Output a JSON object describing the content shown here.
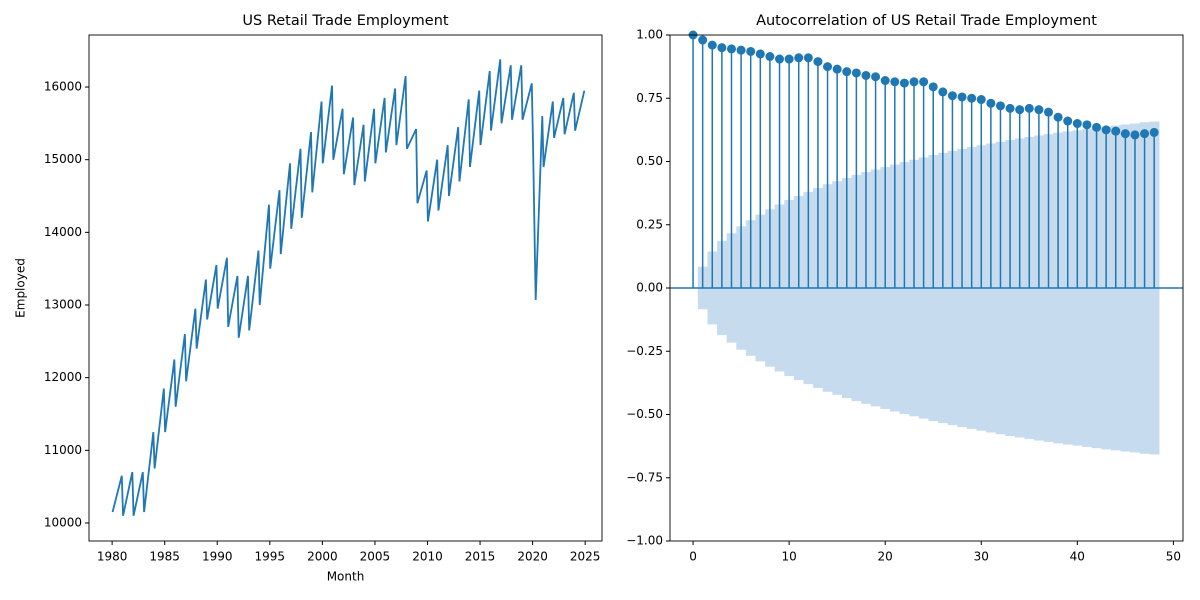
{
  "chart_data": [
    {
      "type": "line",
      "title": "US Retail Trade Employment",
      "x_label": "Month",
      "y_label": "Employed",
      "xlim": [
        1977.8,
        2026.6
      ],
      "ylim": [
        9752,
        16716
      ],
      "xticks": [
        1980,
        1985,
        1990,
        1995,
        2000,
        2005,
        2010,
        2015,
        2020,
        2025
      ],
      "yticks": [
        10000,
        11000,
        12000,
        13000,
        14000,
        15000,
        16000
      ],
      "color": "#1f77b4",
      "x": [
        1980.04,
        1980.92,
        1981.04,
        1981.92,
        1982.04,
        1982.92,
        1983.04,
        1983.92,
        1984.04,
        1984.92,
        1985.04,
        1985.92,
        1986.04,
        1986.92,
        1987.04,
        1987.92,
        1988.04,
        1988.92,
        1989.04,
        1989.92,
        1990.04,
        1990.92,
        1991.04,
        1991.92,
        1992.04,
        1992.92,
        1993.04,
        1993.92,
        1994.04,
        1994.92,
        1995.04,
        1995.92,
        1996.04,
        1996.92,
        1997.04,
        1997.92,
        1998.04,
        1998.92,
        1999.04,
        1999.92,
        2000.04,
        2000.92,
        2001.04,
        2001.92,
        2002.04,
        2002.92,
        2003.04,
        2003.92,
        2004.04,
        2004.92,
        2005.04,
        2005.92,
        2006.04,
        2006.92,
        2007.04,
        2007.92,
        2008.04,
        2008.92,
        2009.04,
        2009.92,
        2010.04,
        2010.92,
        2011.04,
        2011.92,
        2012.04,
        2012.92,
        2013.04,
        2013.92,
        2014.04,
        2014.92,
        2015.04,
        2015.92,
        2016.04,
        2016.92,
        2017.04,
        2017.92,
        2018.04,
        2018.92,
        2019.04,
        2019.92,
        2020.04,
        2020.29,
        2020.92,
        2021.04,
        2021.92,
        2022.04,
        2022.92,
        2023.04,
        2023.92,
        2024.04,
        2024.92
      ],
      "values": [
        10150,
        10650,
        10100,
        10700,
        10100,
        10700,
        10150,
        11250,
        10750,
        11850,
        11250,
        12250,
        11600,
        12600,
        11950,
        12950,
        12400,
        13350,
        12800,
        13550,
        12950,
        13650,
        12700,
        13400,
        12550,
        13400,
        12650,
        13750,
        13000,
        14380,
        13500,
        14580,
        13700,
        14950,
        14050,
        15150,
        14200,
        15380,
        14550,
        15800,
        14950,
        16020,
        15000,
        15700,
        14800,
        15580,
        14650,
        15480,
        14700,
        15700,
        14950,
        15850,
        15100,
        15980,
        15200,
        16150,
        15150,
        15420,
        14400,
        14850,
        14150,
        15000,
        14300,
        15200,
        14500,
        15450,
        14700,
        15830,
        14900,
        15950,
        15200,
        16220,
        15400,
        16380,
        15500,
        16300,
        15550,
        16300,
        15550,
        16050,
        15200,
        13070,
        15600,
        14900,
        15800,
        15300,
        15850,
        15350,
        15920,
        15400,
        15950
      ]
    },
    {
      "type": "stem",
      "title": "Autocorrelation of US Retail Trade Employment",
      "xlim": [
        -2.4,
        51.0
      ],
      "ylim": [
        -1,
        1
      ],
      "xticks": [
        0,
        10,
        20,
        30,
        40,
        50
      ],
      "yticks": [
        {
          "value": -1,
          "label": "−1.00"
        },
        {
          "value": -0.75,
          "label": "−0.75"
        },
        {
          "value": -0.5,
          "label": "−0.50"
        },
        {
          "value": -0.25,
          "label": "−0.25"
        },
        {
          "value": 0,
          "label": "0.00"
        },
        {
          "value": 0.25,
          "label": "0.25"
        },
        {
          "value": 0.5,
          "label": "0.50"
        },
        {
          "value": 0.75,
          "label": "0.75"
        },
        {
          "value": 1,
          "label": "1.00"
        }
      ],
      "color": "#1f77b4",
      "band_color": "#c6dbed",
      "x": [
        0,
        1,
        2,
        3,
        4,
        5,
        6,
        7,
        8,
        9,
        10,
        11,
        12,
        13,
        14,
        15,
        16,
        17,
        18,
        19,
        20,
        21,
        22,
        23,
        24,
        25,
        26,
        27,
        28,
        29,
        30,
        31,
        32,
        33,
        34,
        35,
        36,
        37,
        38,
        39,
        40,
        41,
        42,
        43,
        44,
        45,
        46,
        47,
        48
      ],
      "values": [
        1.0,
        0.98,
        0.96,
        0.95,
        0.945,
        0.94,
        0.935,
        0.925,
        0.915,
        0.905,
        0.905,
        0.91,
        0.91,
        0.895,
        0.875,
        0.865,
        0.855,
        0.85,
        0.84,
        0.835,
        0.82,
        0.815,
        0.81,
        0.815,
        0.815,
        0.795,
        0.775,
        0.76,
        0.755,
        0.75,
        0.745,
        0.73,
        0.72,
        0.71,
        0.705,
        0.71,
        0.705,
        0.695,
        0.675,
        0.66,
        0.65,
        0.645,
        0.635,
        0.625,
        0.62,
        0.61,
        0.605,
        0.61,
        0.615
      ],
      "confidence": {
        "x": [
          1,
          2,
          3,
          4,
          5,
          6,
          7,
          8,
          9,
          10,
          11,
          12,
          13,
          14,
          15,
          16,
          17,
          18,
          19,
          20,
          21,
          22,
          23,
          24,
          25,
          26,
          27,
          28,
          29,
          30,
          31,
          32,
          33,
          34,
          35,
          36,
          37,
          38,
          39,
          40,
          41,
          42,
          43,
          44,
          45,
          46,
          47,
          48
        ],
        "values": [
          0.084,
          0.144,
          0.186,
          0.216,
          0.244,
          0.268,
          0.29,
          0.311,
          0.33,
          0.348,
          0.364,
          0.38,
          0.395,
          0.41,
          0.422,
          0.435,
          0.447,
          0.458,
          0.468,
          0.478,
          0.488,
          0.498,
          0.507,
          0.516,
          0.526,
          0.534,
          0.542,
          0.55,
          0.557,
          0.564,
          0.571,
          0.578,
          0.585,
          0.591,
          0.597,
          0.603,
          0.608,
          0.614,
          0.619,
          0.623,
          0.628,
          0.633,
          0.638,
          0.642,
          0.646,
          0.65,
          0.655,
          0.658
        ]
      }
    }
  ]
}
